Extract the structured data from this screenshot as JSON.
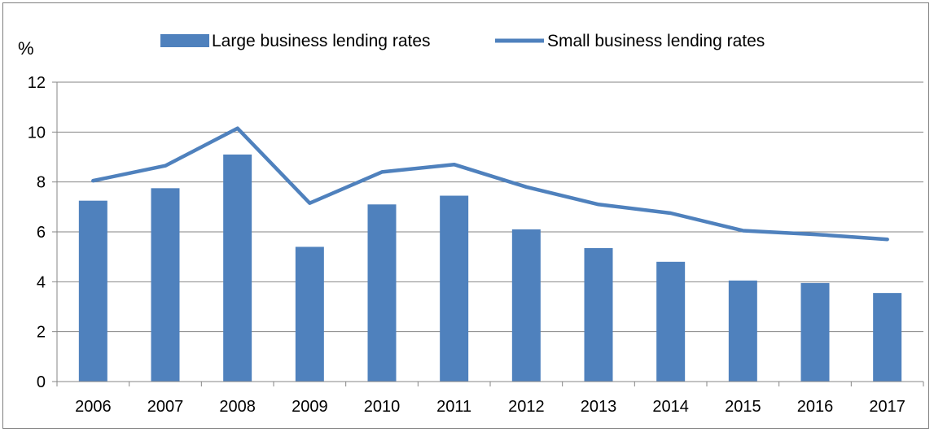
{
  "chart_data": {
    "type": "bar",
    "unit_label": "%",
    "categories": [
      "2006",
      "2007",
      "2008",
      "2009",
      "2010",
      "2011",
      "2012",
      "2013",
      "2014",
      "2015",
      "2016",
      "2017"
    ],
    "series": [
      {
        "name": "Large business lending rates",
        "type": "bar",
        "color": "#4f81bd",
        "values": [
          7.25,
          7.75,
          9.1,
          5.4,
          7.1,
          7.45,
          6.1,
          5.35,
          4.8,
          4.05,
          3.95,
          3.55
        ]
      },
      {
        "name": "Small business lending rates",
        "type": "line",
        "color": "#4f81bd",
        "values": [
          8.05,
          8.65,
          10.15,
          7.15,
          8.4,
          8.7,
          7.8,
          7.1,
          6.75,
          6.05,
          5.9,
          5.7
        ]
      }
    ],
    "ylim": [
      0,
      12
    ],
    "yticks": [
      0,
      2,
      4,
      6,
      8,
      10,
      12
    ],
    "grid": true,
    "legend_position": "top"
  }
}
